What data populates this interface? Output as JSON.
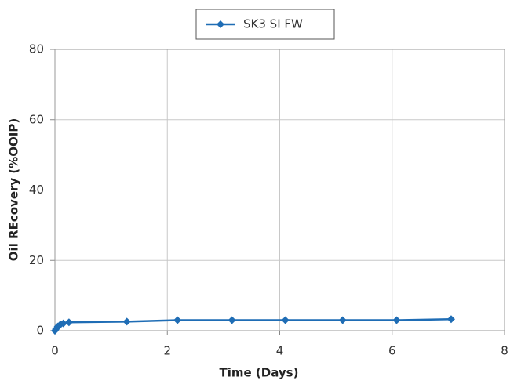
{
  "chart_data": {
    "type": "line",
    "x_label": "Time (Days)",
    "y_label": "Oil REcovery (%OOIP)",
    "series": [
      {
        "name": "SK3 SI FW",
        "color": "#1f6db5",
        "x": [
          0,
          0.02,
          0.05,
          0.1,
          0.15,
          0.25,
          1.28,
          2.18,
          3.15,
          4.1,
          5.12,
          6.08,
          7.05
        ],
        "values": [
          0,
          0.5,
          1.2,
          1.8,
          2.1,
          2.4,
          2.6,
          3.0,
          3.0,
          3.0,
          3.0,
          3.0,
          3.3
        ]
      }
    ],
    "xlim": [
      0,
      8
    ],
    "xticks": [
      0,
      2,
      4,
      6,
      8
    ],
    "ylim": [
      0,
      80
    ],
    "yticks": [
      0,
      20,
      40,
      60,
      80
    ],
    "grid": true,
    "legend": "top"
  }
}
